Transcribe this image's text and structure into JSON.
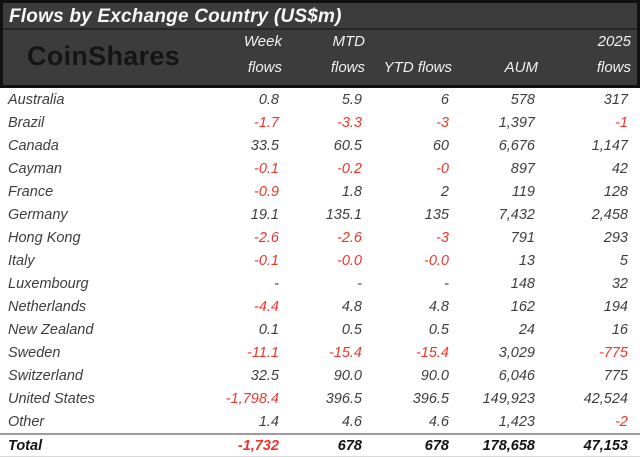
{
  "header": {
    "title": "Flows by Exchange Country (US$m)",
    "logo": "CoinShares",
    "columns": [
      {
        "line1": "Week",
        "line2": "flows"
      },
      {
        "line1": "MTD",
        "line2": "flows"
      },
      {
        "line1": "",
        "line2": "YTD flows"
      },
      {
        "line1": "",
        "line2": "AUM"
      },
      {
        "line1": "2025",
        "line2": "flows"
      }
    ]
  },
  "colors": {
    "negative": "#ee352b",
    "header_bg": "#3c3c3c",
    "header_border": "#101010",
    "body_text": "#3d3d3d"
  },
  "rows": [
    {
      "country": "Australia",
      "values": [
        "0.8",
        "5.9",
        "6",
        "578",
        "317"
      ]
    },
    {
      "country": "Brazil",
      "values": [
        "-1.7",
        "-3.3",
        "-3",
        "1,397",
        "-1"
      ]
    },
    {
      "country": "Canada",
      "values": [
        "33.5",
        "60.5",
        "60",
        "6,676",
        "1,147"
      ]
    },
    {
      "country": "Cayman",
      "values": [
        "-0.1",
        "-0.2",
        "-0",
        "897",
        "42"
      ]
    },
    {
      "country": "France",
      "values": [
        "-0.9",
        "1.8",
        "2",
        "119",
        "128"
      ]
    },
    {
      "country": "Germany",
      "values": [
        "19.1",
        "135.1",
        "135",
        "7,432",
        "2,458"
      ]
    },
    {
      "country": "Hong Kong",
      "values": [
        "-2.6",
        "-2.6",
        "-3",
        "791",
        "293"
      ]
    },
    {
      "country": "Italy",
      "values": [
        "-0.1",
        "-0.0",
        "-0.0",
        "13",
        "5"
      ]
    },
    {
      "country": "Luxembourg",
      "values": [
        "-",
        "-",
        "-",
        "148",
        "32"
      ]
    },
    {
      "country": "Netherlands",
      "values": [
        "-4.4",
        "4.8",
        "4.8",
        "162",
        "194"
      ]
    },
    {
      "country": "New Zealand",
      "values": [
        "0.1",
        "0.5",
        "0.5",
        "24",
        "16"
      ]
    },
    {
      "country": "Sweden",
      "values": [
        "-11.1",
        "-15.4",
        "-15.4",
        "3,029",
        "-775"
      ]
    },
    {
      "country": "Switzerland",
      "values": [
        "32.5",
        "90.0",
        "90.0",
        "6,046",
        "775"
      ]
    },
    {
      "country": "United States",
      "values": [
        "-1,798.4",
        "396.5",
        "396.5",
        "149,923",
        "42,524"
      ]
    },
    {
      "country": "Other",
      "values": [
        "1.4",
        "4.6",
        "4.6",
        "1,423",
        "-2"
      ]
    }
  ],
  "total": {
    "country": "Total",
    "values": [
      "-1,732",
      "678",
      "678",
      "178,658",
      "47,153"
    ]
  }
}
